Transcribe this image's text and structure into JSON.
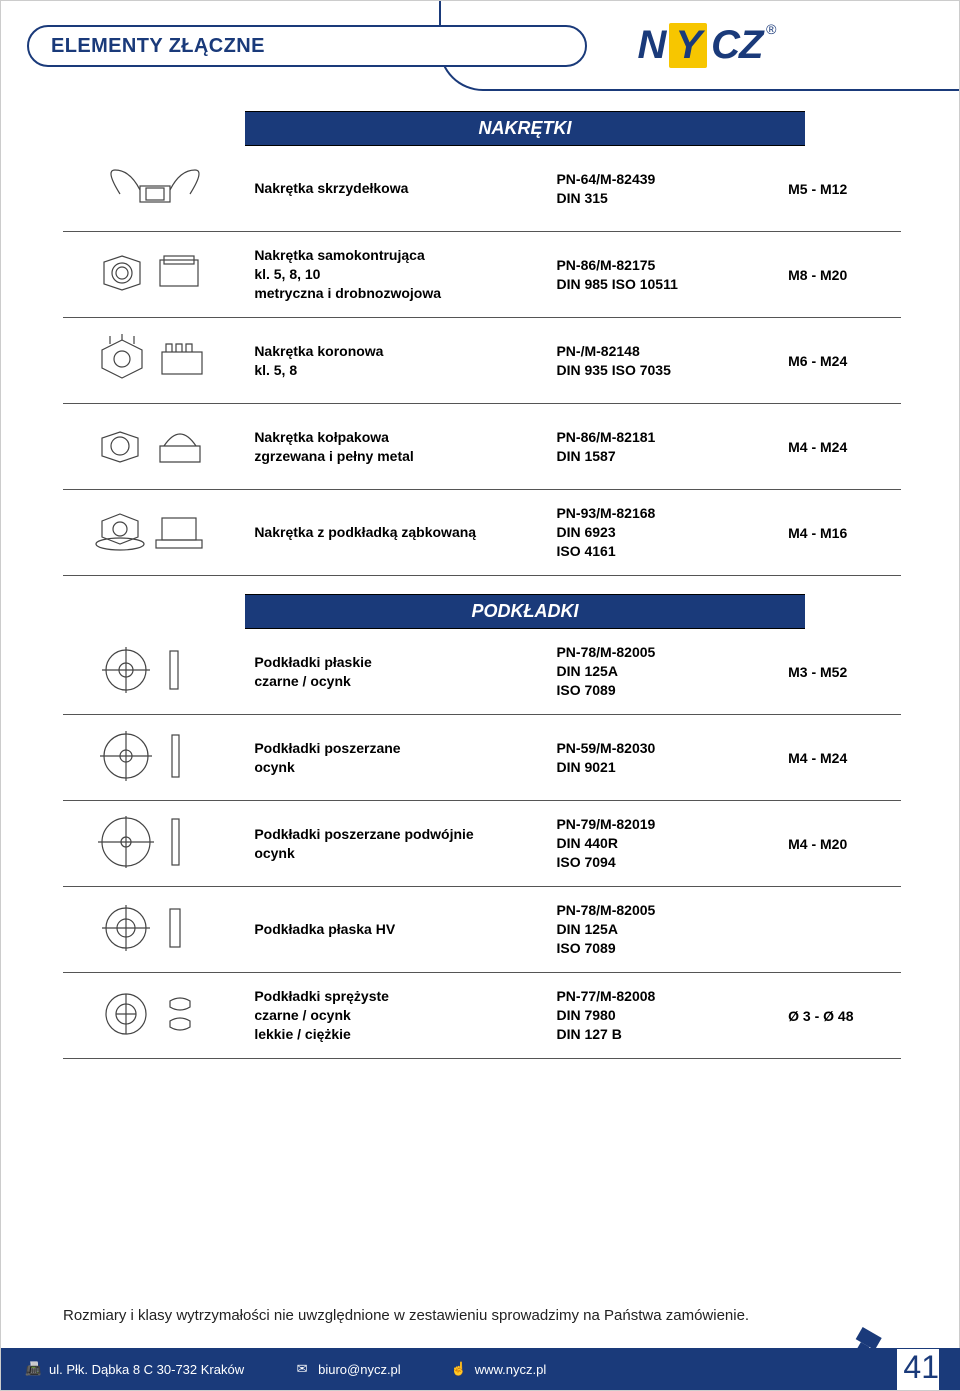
{
  "page_title": "ELEMENTY ZŁĄCZNE",
  "brand": {
    "full": "NYCZ",
    "n": "N",
    "y": "Y",
    "cz": "CZ",
    "reg": "®"
  },
  "sections": [
    {
      "header": "NAKRĘTKI",
      "rows": [
        {
          "name": "Nakrętka skrzydełkowa",
          "spec_lines": [
            "PN-64/M-82439",
            "DIN 315"
          ],
          "size": "M5 - M12",
          "icon": "wingnut"
        },
        {
          "name": "Nakrętka samokontrująca\nkl. 5, 8, 10\nmetryczna i drobnozwojowa",
          "spec_lines": [
            "PN-86/M-82175",
            "DIN 985  ISO 10511"
          ],
          "size": "M8 - M20",
          "icon": "locknut"
        },
        {
          "name": "Nakrętka koronowa\nkl. 5, 8",
          "spec_lines": [
            "PN-/M-82148",
            "DIN 935  ISO 7035"
          ],
          "size": "M6 - M24",
          "icon": "castle"
        },
        {
          "name": "Nakrętka kołpakowa\nzgrzewana i pełny metal",
          "spec_lines": [
            "PN-86/M-82181",
            "DIN 1587"
          ],
          "size": "M4 - M24",
          "icon": "capnut"
        },
        {
          "name": "Nakrętka z podkładką ząbkowaną",
          "spec_lines": [
            "PN-93/M-82168",
            "DIN 6923",
            "ISO 4161"
          ],
          "size": "M4 - M16",
          "icon": "flangenut"
        }
      ]
    },
    {
      "header": "PODKŁADKI",
      "rows": [
        {
          "name": "Podkładki płaskie\nczarne / ocynk",
          "spec_lines": [
            "PN-78/M-82005",
            "DIN 125A",
            "ISO 7089"
          ],
          "size": "M3 - M52",
          "icon": "washer-flat"
        },
        {
          "name": "Podkładki poszerzane\nocynk",
          "spec_lines": [
            "PN-59/M-82030",
            "DIN 9021"
          ],
          "size": "M4 - M24",
          "icon": "washer-wide"
        },
        {
          "name": "Podkładki poszerzane podwójnie\nocynk",
          "spec_lines": [
            "PN-79/M-82019",
            "DIN 440R",
            "ISO 7094"
          ],
          "size": "M4 - M20",
          "icon": "washer-xwide"
        },
        {
          "name": "Podkładka płaska HV",
          "spec_lines": [
            "PN-78/M-82005",
            "DIN 125A",
            "ISO 7089"
          ],
          "size": "",
          "icon": "washer-hv"
        },
        {
          "name": "Podkładki sprężyste\nczarne / ocynk\nlekkie / ciężkie",
          "spec_lines": [
            "PN-77/M-82008",
            "DIN 7980",
            "DIN 127 B"
          ],
          "size": "Ø 3 - Ø 48",
          "icon": "washer-spring"
        }
      ]
    }
  ],
  "footnote": "Rozmiary i klasy wytrzymałości  nie uwzględnione w zestawieniu sprowadzimy na Państwa zamówienie.",
  "footer": {
    "address": "ul. Płk. Dąbka 8 C    30-732 Kraków",
    "email": "biuro@nycz.pl",
    "web": "www.nycz.pl"
  },
  "page_number": "41",
  "colors": {
    "brand_blue": "#1a3a7a",
    "brand_yellow": "#f7c600"
  }
}
